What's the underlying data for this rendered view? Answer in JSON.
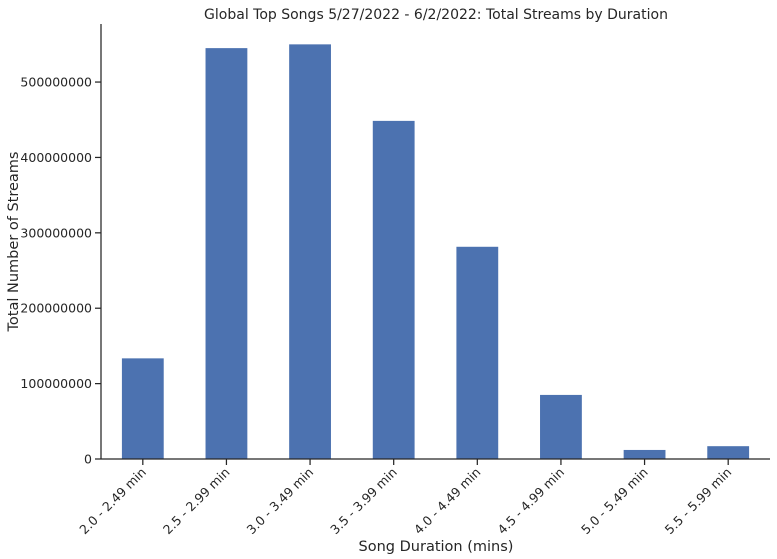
{
  "chart_data": {
    "type": "bar",
    "title": "Global Top Songs 5/27/2022 - 6/2/2022: Total Streams by Duration",
    "xlabel": "Song Duration (mins)",
    "ylabel": "Total Number of Streams",
    "categories": [
      "2.0 - 2.49 min",
      "2.5 - 2.99 min",
      "3.0 - 3.49 min",
      "3.5 - 3.99 min",
      "4.0 - 4.49 min",
      "4.5 - 4.99 min",
      "5.0 - 5.49 min",
      "5.5 - 5.99 min"
    ],
    "values": [
      133500000,
      545000000,
      550000000,
      448500000,
      281500000,
      85000000,
      12000000,
      17000000
    ],
    "ylim": [
      0,
      577000000
    ],
    "yticks": [
      0,
      100000000,
      200000000,
      300000000,
      400000000,
      500000000
    ],
    "ytick_labels": [
      "0",
      "100000000",
      "200000000",
      "300000000",
      "400000000",
      "500000000"
    ],
    "grid": false,
    "bar_color": "#4c72b0"
  }
}
